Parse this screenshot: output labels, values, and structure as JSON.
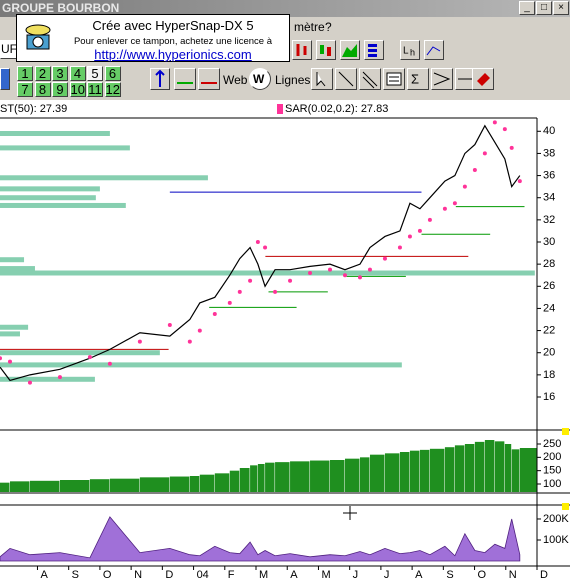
{
  "window": {
    "title": "GROUPE BOURBON"
  },
  "menu": {
    "items": [
      "mètre",
      "?"
    ]
  },
  "stamp": {
    "line1": "Crée avec HyperSnap-DX 5",
    "line2": "Pour enlever ce tampon, achetez une licence à",
    "link": "http://www.hyperionics.com"
  },
  "toolbar": {
    "symbol": "UF",
    "periods": [
      "1",
      "2",
      "3",
      "4",
      "5",
      "6",
      "7",
      "8",
      "9",
      "10",
      "11",
      "12"
    ],
    "web": "Web",
    "lines": "Lignes"
  },
  "chart_data": [
    {
      "type": "line",
      "indicator_label": "ST(50): 27.39",
      "x": [
        -1.2,
        -0.88,
        -0.24,
        0.72,
        1.68,
        2.32,
        3.28,
        4.24,
        4.88,
        5.2,
        5.68,
        6.16,
        6.48,
        6.81,
        7.06,
        7.29,
        7.61,
        8.09,
        8.73,
        9.37,
        9.85,
        10.33,
        10.65,
        11.13,
        11.61,
        11.93,
        12.25,
        12.57,
        13.05,
        13.37,
        13.69,
        14.01,
        14.33,
        14.65,
        14.97,
        15.19,
        15.45
      ],
      "series": [
        {
          "color": "#000000",
          "values": [
            18.7,
            17.5,
            18,
            18.5,
            19.5,
            20.3,
            21.8,
            21.5,
            23,
            24.5,
            25,
            27,
            28.5,
            29.5,
            28,
            26,
            27.5,
            27.5,
            27.8,
            28,
            27.5,
            28,
            29.5,
            30.5,
            31,
            33.5,
            33,
            34,
            35.5,
            36,
            38,
            38.8,
            40.5,
            39,
            37.5,
            35,
            36
          ]
        },
        {
          "name": "SAR(0.02,0.2): 27.83",
          "color": "#ff3399",
          "marker": "dot",
          "values": [
            19.5,
            19.2,
            17.3,
            17.8,
            19.6,
            19.0,
            21.0,
            22.5,
            21.0,
            22.0,
            23.5,
            24.5,
            25.5,
            26.5,
            30.0,
            29.5,
            25.5,
            26.5,
            27.2,
            27.5,
            27.0,
            26.8,
            27.5,
            28.5,
            29.5,
            30.5,
            31.0,
            32.0,
            33.0,
            33.5,
            35.0,
            36.5,
            38.0,
            40.8,
            40.2,
            38.5,
            35.5
          ]
        }
      ],
      "levels": [
        {
          "price": 34.5,
          "from": 4.24,
          "to": 12.3,
          "color": "#0000c0"
        },
        {
          "price": 28.7,
          "from": 7.3,
          "to": 13.8,
          "color": "#c00000"
        },
        {
          "price": 20.3,
          "from": -1.2,
          "to": 4.2,
          "color": "#c00000"
        },
        {
          "price": 33.2,
          "from": 13.4,
          "to": 15.6,
          "color": "#009900"
        },
        {
          "price": 30.7,
          "from": 12.3,
          "to": 14.5,
          "color": "#009900"
        },
        {
          "price": 25.5,
          "from": 7.4,
          "to": 9.3,
          "color": "#009900"
        },
        {
          "price": 24.1,
          "from": 5.5,
          "to": 8.3,
          "color": "#009900"
        },
        {
          "price": 26.9,
          "from": 9.9,
          "to": 11.8,
          "color": "#009900"
        }
      ],
      "profile_color": "#86cfb0",
      "profile": [
        {
          "price": 39.8,
          "end": 2.32
        },
        {
          "price": 38.5,
          "end": 2.96
        },
        {
          "price": 35.8,
          "end": 5.46
        },
        {
          "price": 34.8,
          "end": 2.0
        },
        {
          "price": 34.0,
          "end": 1.87
        },
        {
          "price": 33.3,
          "end": 2.83
        },
        {
          "price": 28.4,
          "end": -0.43
        },
        {
          "price": 27.6,
          "end": -0.08
        },
        {
          "price": 27.2,
          "end": 15.93
        },
        {
          "price": 22.3,
          "end": -0.3
        },
        {
          "price": 21.7,
          "end": -0.56
        },
        {
          "price": 20.0,
          "end": 3.92
        },
        {
          "price": 18.9,
          "end": 11.67
        },
        {
          "price": 17.6,
          "end": 1.84
        }
      ],
      "xlim": [
        -1.2,
        16
      ],
      "ylim": [
        13.2,
        41.2
      ],
      "yticks": [
        16,
        18,
        20,
        22,
        24,
        26,
        28,
        30,
        32,
        34,
        36,
        38,
        40
      ]
    },
    {
      "type": "bar",
      "color": "#1f8f1f",
      "x": [
        -1.2,
        -0.88,
        -0.24,
        0.72,
        1.68,
        2.32,
        3.28,
        4.24,
        4.88,
        5.2,
        5.68,
        6.16,
        6.48,
        6.81,
        7.06,
        7.29,
        7.61,
        8.09,
        8.73,
        9.37,
        9.85,
        10.33,
        10.65,
        11.13,
        11.61,
        11.93,
        12.25,
        12.57,
        13.05,
        13.37,
        13.69,
        14.01,
        14.33,
        14.65,
        14.97,
        15.19,
        15.45
      ],
      "values": [
        105,
        110,
        112,
        115,
        118,
        120,
        125,
        128,
        130,
        135,
        140,
        150,
        160,
        170,
        175,
        180,
        182,
        185,
        188,
        190,
        195,
        200,
        210,
        215,
        220,
        225,
        228,
        232,
        238,
        245,
        250,
        258,
        265,
        260,
        250,
        230,
        235
      ],
      "xlim": [
        -1.2,
        16
      ],
      "ylim": [
        70,
        295
      ],
      "yticks": [
        100,
        150,
        200,
        250
      ]
    },
    {
      "type": "area",
      "color": "#a070d8",
      "x": [
        -1.2,
        -0.88,
        -0.24,
        0.72,
        1.68,
        2.32,
        3.28,
        4.24,
        4.88,
        5.2,
        5.68,
        6.16,
        6.48,
        6.81,
        7.06,
        7.29,
        7.61,
        8.09,
        8.73,
        9.37,
        9.85,
        10.33,
        10.65,
        11.13,
        11.61,
        11.93,
        12.25,
        12.57,
        13.05,
        13.37,
        13.69,
        14.01,
        14.33,
        14.65,
        14.97,
        15.19,
        15.45
      ],
      "values": [
        20000,
        60000,
        30000,
        40000,
        15000,
        210000,
        40000,
        60000,
        30000,
        25000,
        70000,
        40000,
        35000,
        90000,
        30000,
        50000,
        25000,
        35000,
        20000,
        30000,
        25000,
        45000,
        30000,
        60000,
        35000,
        40000,
        50000,
        30000,
        70000,
        25000,
        130000,
        50000,
        40000,
        80000,
        60000,
        200000,
        30000
      ],
      "xlim": [
        -1.2,
        16
      ],
      "ylim": [
        -19000,
        257000
      ],
      "yticks": [
        {
          "value": 100000,
          "label": "100K"
        },
        {
          "value": 200000,
          "label": "200K"
        }
      ],
      "xticks": [
        {
          "value": 0,
          "label": "A"
        },
        {
          "value": 1,
          "label": "S"
        },
        {
          "value": 2,
          "label": "O"
        },
        {
          "value": 3,
          "label": "N"
        },
        {
          "value": 4,
          "label": "D"
        },
        {
          "value": 5,
          "label": "04"
        },
        {
          "value": 6,
          "label": "F"
        },
        {
          "value": 7,
          "label": "M"
        },
        {
          "value": 8,
          "label": "A"
        },
        {
          "value": 9,
          "label": "M"
        },
        {
          "value": 10,
          "label": "J"
        },
        {
          "value": 11,
          "label": "J"
        },
        {
          "value": 12,
          "label": "A"
        },
        {
          "value": 13,
          "label": "S"
        },
        {
          "value": 14,
          "label": "O"
        },
        {
          "value": 15,
          "label": "N"
        },
        {
          "value": 16,
          "label": "D"
        }
      ]
    }
  ]
}
